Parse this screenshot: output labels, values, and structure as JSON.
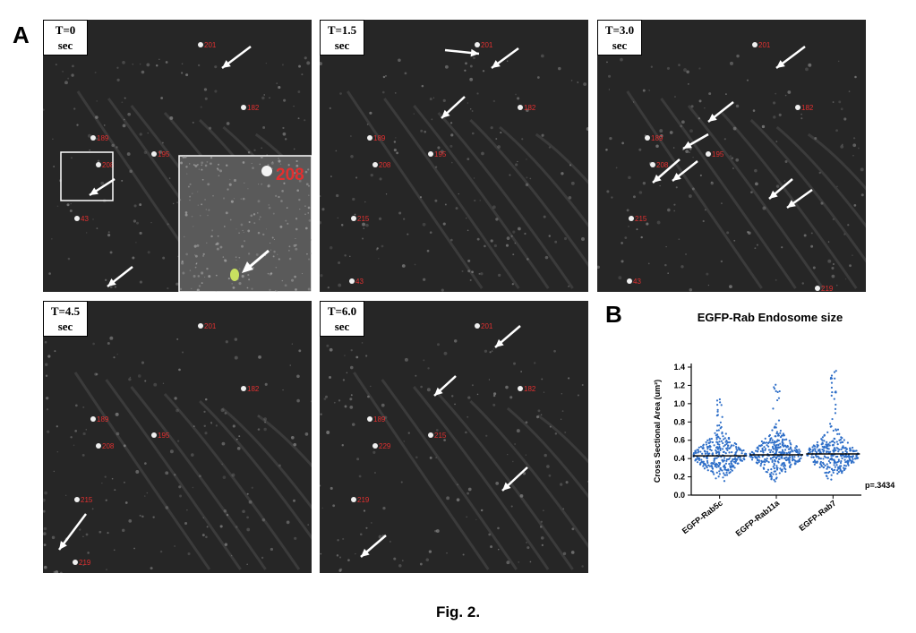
{
  "figure": {
    "panel_a_label": "A",
    "panel_b_label": "B",
    "caption": "Fig. 2."
  },
  "panel_a": {
    "frames": [
      {
        "line1": "T=0",
        "line2": "sec",
        "spot_labels": [
          "201",
          "182",
          "189",
          "208",
          "195",
          "43"
        ],
        "inset_label": "208"
      },
      {
        "line1": "T=1.5",
        "line2": "sec",
        "spot_labels": [
          "201",
          "182",
          "189",
          "208",
          "195",
          "215",
          "43"
        ]
      },
      {
        "line1": "T=3.0",
        "line2": "sec",
        "spot_labels": [
          "201",
          "182",
          "189",
          "208",
          "195",
          "215",
          "43",
          "219"
        ]
      },
      {
        "line1": "T=4.5",
        "line2": "sec",
        "spot_labels": [
          "201",
          "182",
          "189",
          "208",
          "195",
          "215",
          "219"
        ]
      },
      {
        "line1": "T=6.0",
        "line2": "sec",
        "spot_labels": [
          "201",
          "182",
          "189",
          "229",
          "215",
          "219"
        ]
      }
    ],
    "colors": {
      "background": "#262626",
      "label_red": "#e23030",
      "arrow": "#ffffff"
    }
  },
  "chart_data": {
    "type": "scatter",
    "title": "EGFP-Rab Endosome size",
    "ylabel": "Cross Sectional Area (um²)",
    "xlabel": "",
    "categories": [
      "EGFP-Rab5c",
      "EGFP-Rab11a",
      "EGFP-Rab7"
    ],
    "ylim": [
      0.0,
      1.4
    ],
    "yticks": [
      "0.0",
      "0.2",
      "0.4",
      "0.6",
      "0.8",
      "1.0",
      "1.2",
      "1.4"
    ],
    "means": [
      0.43,
      0.44,
      0.45
    ],
    "max_values": [
      1.05,
      1.31,
      1.37
    ],
    "min_values": [
      0.15,
      0.15,
      0.15
    ],
    "annotation": "p=.3434",
    "point_color": "#2f6fc8",
    "grid": false
  }
}
